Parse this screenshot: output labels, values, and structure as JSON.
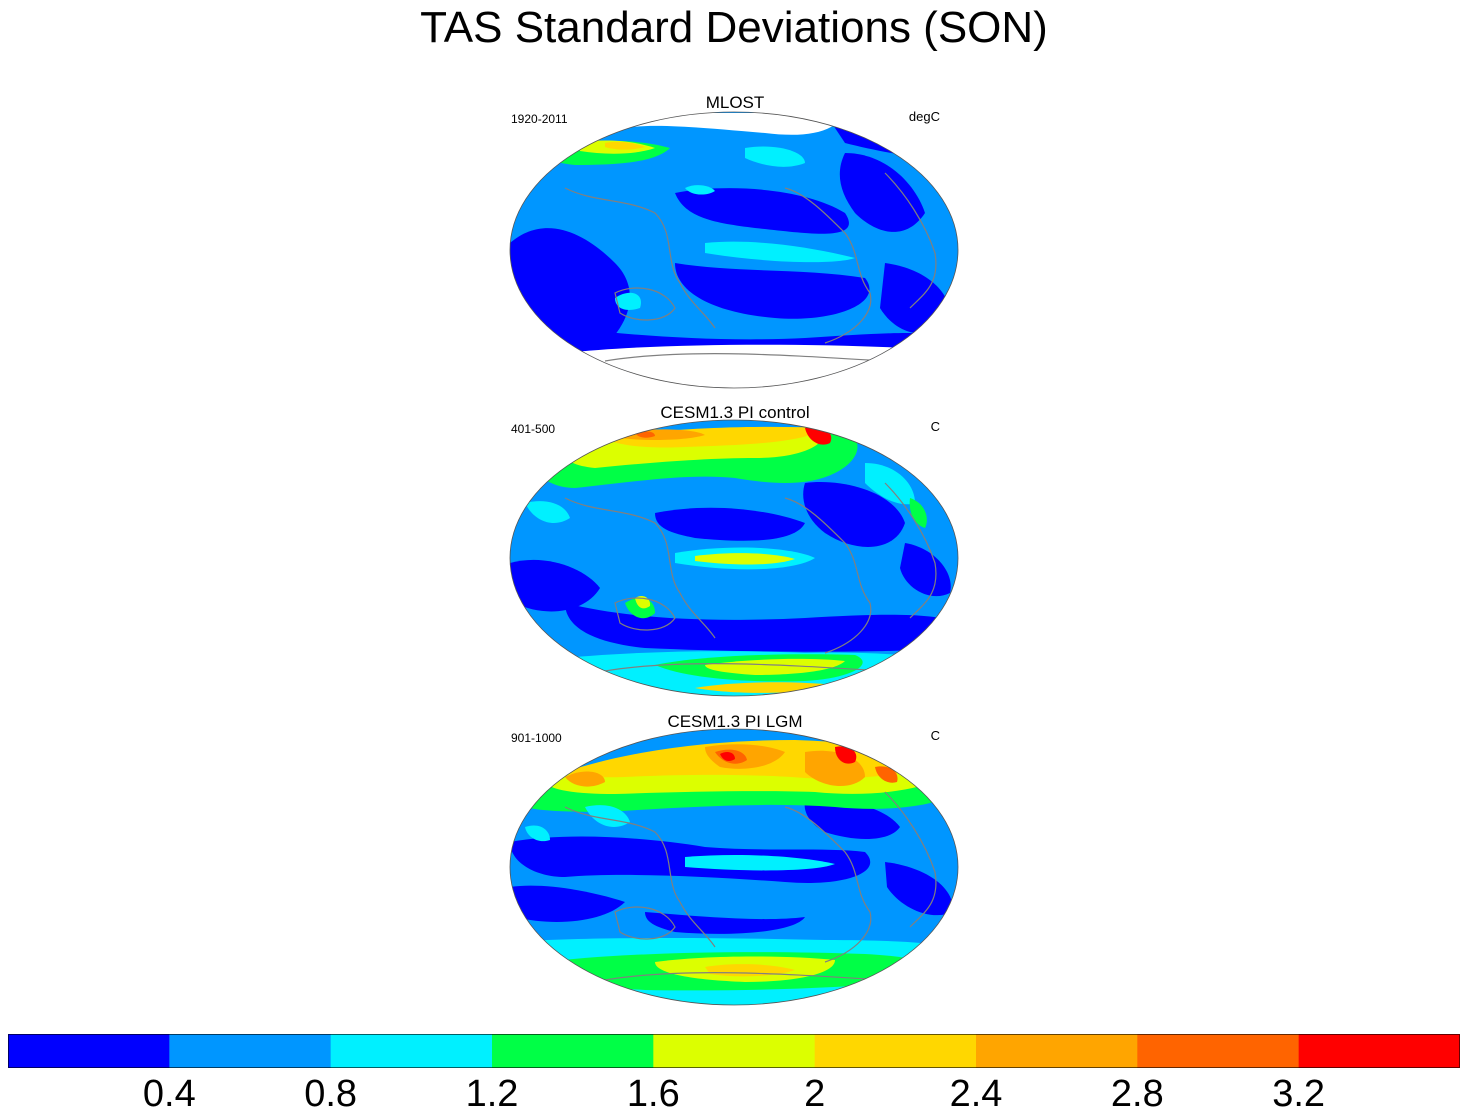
{
  "title": "TAS Standard Deviations (SON)",
  "panels": [
    {
      "title": "MLOST",
      "period": "1920-2011",
      "units": "degC"
    },
    {
      "title": "CESM1.3 PI control",
      "period": "401-500",
      "units": "C"
    },
    {
      "title": "CESM1.3 PI LGM",
      "period": "901-1000",
      "units": "C"
    }
  ],
  "colorbar": {
    "colors": [
      "#0000ff",
      "#0096ff",
      "#00f0ff",
      "#00ff46",
      "#dcff00",
      "#ffd700",
      "#ffa500",
      "#ff6400",
      "#ff0000"
    ],
    "labels": [
      "0.4",
      "0.8",
      "1.2",
      "1.6",
      "2",
      "2.4",
      "2.8",
      "3.2"
    ]
  },
  "chart_data": {
    "type": "heatmap",
    "title": "TAS Standard Deviations (SON)",
    "levels": [
      0.4,
      0.8,
      1.2,
      1.6,
      2,
      2.4,
      2.8,
      3.2
    ],
    "panels": [
      "MLOST",
      "CESM1.3 PI control",
      "CESM1.3 PI LGM"
    ]
  }
}
